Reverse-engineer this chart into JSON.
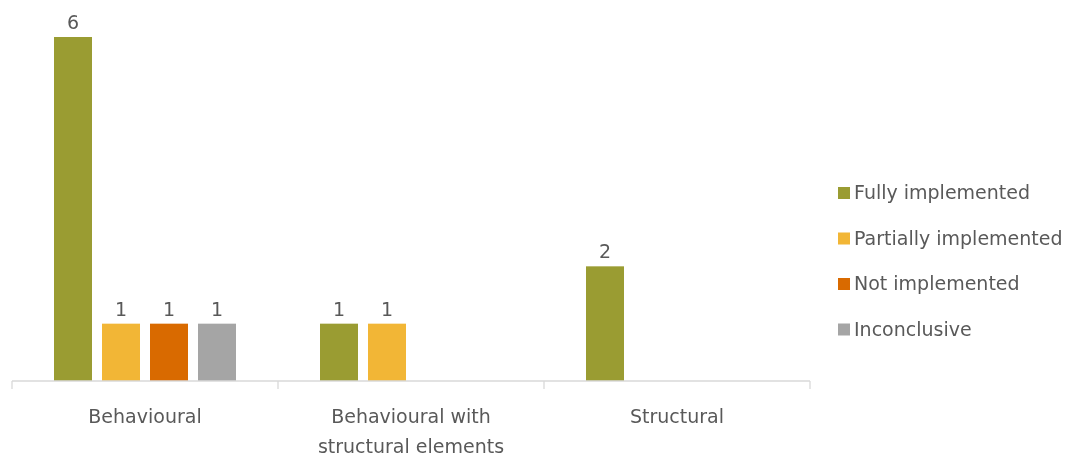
{
  "chart_data": {
    "type": "bar",
    "categories": [
      "Behavioural",
      "Behavioural with structural elements",
      "Structural"
    ],
    "series": [
      {
        "name": "Fully implemented",
        "color": "#9a9c32",
        "values": [
          6,
          1,
          2
        ]
      },
      {
        "name": "Partially implemented",
        "color": "#f2b636",
        "values": [
          1,
          1,
          null
        ]
      },
      {
        "name": "Not implemented",
        "color": "#d96a00",
        "values": [
          1,
          null,
          null
        ]
      },
      {
        "name": "Inconclusive",
        "color": "#a5a5a5",
        "values": [
          1,
          null,
          null
        ]
      }
    ],
    "data_labels": true,
    "legend": "right"
  }
}
